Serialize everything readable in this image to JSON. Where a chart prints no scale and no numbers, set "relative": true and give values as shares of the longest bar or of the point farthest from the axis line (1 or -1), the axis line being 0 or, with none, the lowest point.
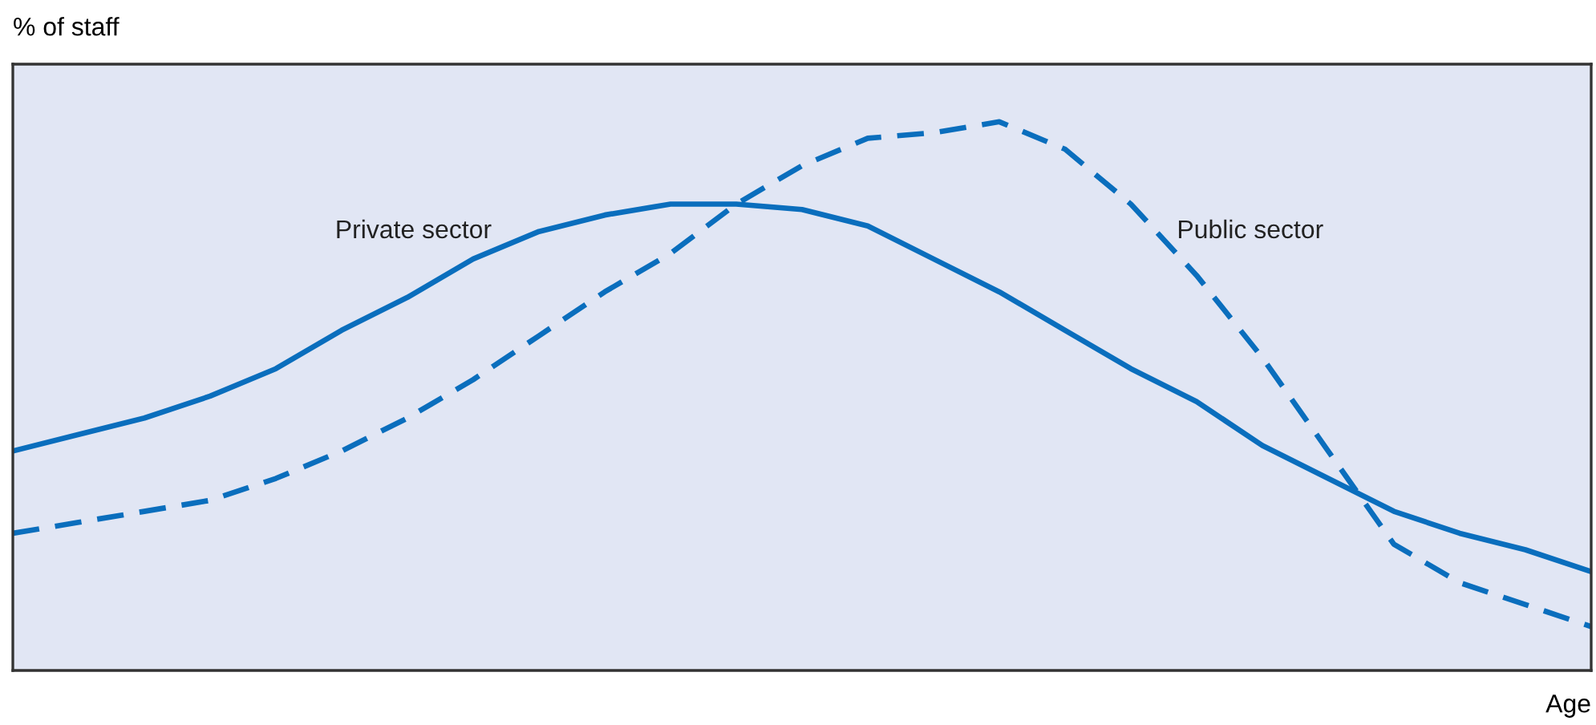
{
  "chart_data": {
    "type": "line",
    "relative": true,
    "xlabel": "Age",
    "ylabel": "% of staff",
    "categories": [
      null,
      null,
      null,
      null,
      null,
      null,
      null,
      null,
      null,
      null,
      null,
      null,
      null,
      null,
      null,
      null,
      null,
      null,
      null,
      null,
      null,
      null,
      null,
      null,
      null
    ],
    "series": [
      {
        "name": "Private sector",
        "color": "#0a6ebd",
        "line_style": "solid",
        "values": [
          0.4,
          0.43,
          0.46,
          0.5,
          0.55,
          0.62,
          0.68,
          0.75,
          0.8,
          0.83,
          0.85,
          0.85,
          0.84,
          0.81,
          0.75,
          0.69,
          0.62,
          0.55,
          0.49,
          0.41,
          0.35,
          0.29,
          0.25,
          0.22,
          0.18
        ]
      },
      {
        "name": "Public sector",
        "color": "#0a6ebd",
        "line_style": "dashed",
        "values": [
          0.25,
          0.27,
          0.29,
          0.31,
          0.35,
          0.4,
          0.46,
          0.53,
          0.61,
          0.69,
          0.76,
          0.85,
          0.92,
          0.97,
          0.98,
          1.0,
          0.95,
          0.85,
          0.72,
          0.57,
          0.4,
          0.23,
          0.16,
          0.12,
          0.08
        ]
      }
    ],
    "legend": false
  }
}
